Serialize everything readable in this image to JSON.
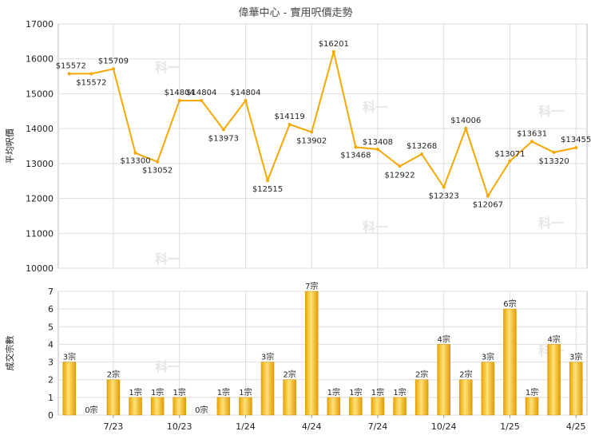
{
  "title": "偉華中心 - 實用呎價走勢",
  "watermark": "科一",
  "chart_data": [
    {
      "type": "line",
      "ylabel": "平均呎價",
      "ylim": [
        10000,
        17000
      ],
      "yticks": [
        10000,
        11000,
        12000,
        13000,
        14000,
        15000,
        16000,
        17000
      ],
      "grid": true,
      "color": "#f5a800",
      "label_prefix": "$",
      "series": [
        {
          "values": [
            15572,
            15572,
            15709,
            13300,
            13052,
            14804,
            14804,
            13973,
            14804,
            12515,
            14119,
            13902,
            16201,
            13468,
            13408,
            12922,
            13268,
            12323,
            14006,
            12067,
            13071,
            13631,
            13320,
            13455
          ]
        }
      ]
    },
    {
      "type": "bar",
      "ylabel": "成交宗數",
      "ylim": [
        0,
        7
      ],
      "yticks": [
        0,
        1,
        2,
        3,
        4,
        5,
        6,
        7
      ],
      "grid": true,
      "color": "#f5a800",
      "label_suffix": "宗",
      "x_tick_labels": [
        {
          "index": 2,
          "label": "7/23"
        },
        {
          "index": 5,
          "label": "10/23"
        },
        {
          "index": 8,
          "label": "1/24"
        },
        {
          "index": 11,
          "label": "4/24"
        },
        {
          "index": 14,
          "label": "7/24"
        },
        {
          "index": 17,
          "label": "10/24"
        },
        {
          "index": 20,
          "label": "1/25"
        },
        {
          "index": 23,
          "label": "4/25"
        }
      ],
      "series": [
        {
          "values": [
            3,
            0,
            2,
            1,
            1,
            1,
            0,
            1,
            1,
            3,
            2,
            7,
            1,
            1,
            1,
            1,
            2,
            4,
            2,
            3,
            6,
            1,
            4,
            3
          ]
        }
      ]
    }
  ]
}
